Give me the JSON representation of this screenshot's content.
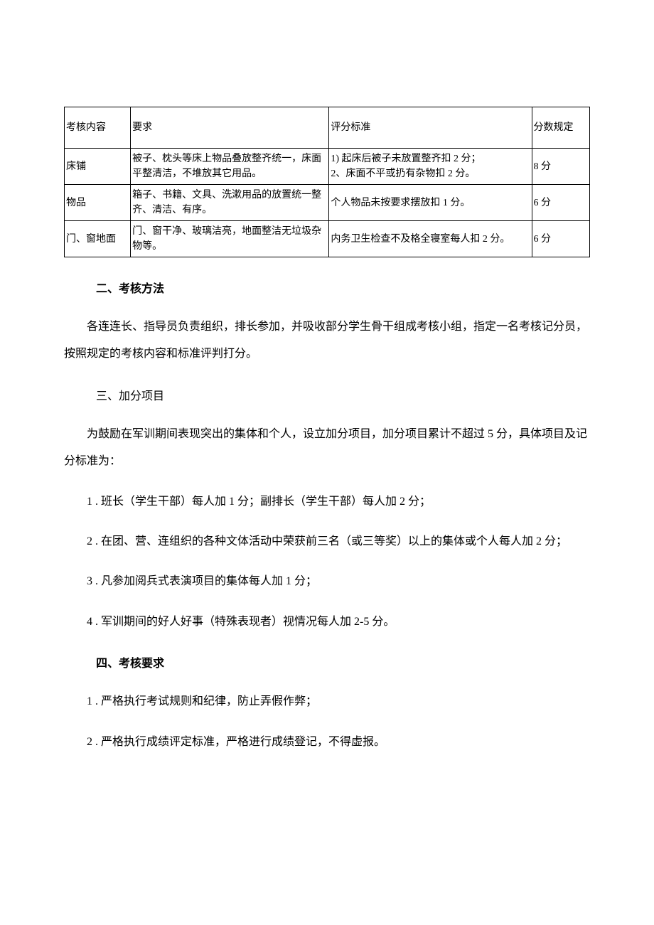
{
  "table": {
    "headers": [
      "考核内容",
      "要求",
      "评分标准",
      "分数规定"
    ],
    "rows": [
      {
        "c1": "床铺",
        "c2": "被子、枕头等床上物品叠放整齐统一，床面平整清洁，不堆放其它用品。",
        "c3": "1) 起床后被子未放置整齐扣 2 分；\n2、床面不平或扔有杂物扣 2 分。",
        "c4": "8 分"
      },
      {
        "c1": "物品",
        "c2": "箱子、书籍、文具、洗漱用品的放置统一整齐、清洁、有序。",
        "c3": "个人物品未按要求摆放扣 1 分。",
        "c4": "6 分"
      },
      {
        "c1": "门、窗地面",
        "c2": "门、窗干净、玻璃洁亮，地面整洁无垃圾杂物等。",
        "c3": "内务卫生检查不及格全寝室每人扣 2 分。",
        "c4": "6 分"
      }
    ],
    "styling": {
      "border_color": "#000000",
      "font_size": 14,
      "col_widths_pct": [
        11,
        33,
        34,
        10
      ]
    }
  },
  "sections": {
    "s2_title": "二、考核方法",
    "s2_body": "各连连长、指导员负责组织，排长参加，并吸收部分学生骨干组成考核小组，指定一名考核记分员，按照规定的考核内容和标准评判打分。",
    "s3_title": "三、加分项目",
    "s3_intro": "为鼓励在军训期间表现突出的集体和个人，设立加分项目，加分项目累计不超过 5 分，具体项目及记分标准为：",
    "s3_items": [
      "1 . 班长（学生干部）每人加 1 分；副排长（学生干部）每人加 2 分；",
      "2 . 在团、营、连组织的各种文体活动中荣获前三名（或三等奖）以上的集体或个人每人加 2 分；",
      "3 . 凡参加阅兵式表演项目的集体每人加 1 分；",
      "4 . 军训期间的好人好事（特殊表现者）视情况每人加 2-5 分。"
    ],
    "s4_title": "四、考核要求",
    "s4_items": [
      "1 . 严格执行考试规则和纪律，防止弄假作弊；",
      "2 . 严格执行成绩评定标准，严格进行成绩登记，不得虚报。"
    ]
  },
  "colors": {
    "text": "#000000",
    "background": "#ffffff",
    "border": "#000000"
  },
  "typography": {
    "body_font_size": 16,
    "table_font_size": 14,
    "font_family": "SimSun"
  }
}
